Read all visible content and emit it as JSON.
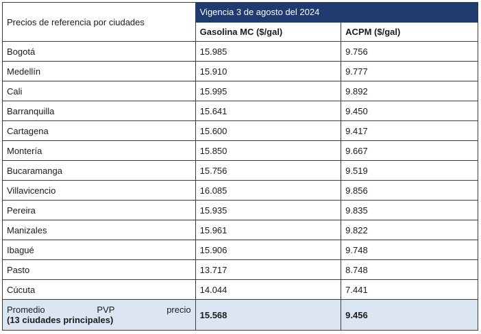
{
  "header": {
    "label": "Precios de referencia por ciudades",
    "vigencia": "Vigencia 3 de agosto del 2024",
    "gasolina_col": "Gasolina MC ($/gal)",
    "acpm_col": "ACPM ($/gal)"
  },
  "rows": [
    {
      "city": "Bogotá",
      "gasolina": "15.985",
      "acpm": "9.756"
    },
    {
      "city": "Medellín",
      "gasolina": "15.910",
      "acpm": "9.777"
    },
    {
      "city": "Cali",
      "gasolina": "15.995",
      "acpm": "9.892"
    },
    {
      "city": "Barranquilla",
      "gasolina": "15.641",
      "acpm": "9.450"
    },
    {
      "city": "Cartagena",
      "gasolina": "15.600",
      "acpm": "9.417"
    },
    {
      "city": "Montería",
      "gasolina": "15.850",
      "acpm": "9.667"
    },
    {
      "city": "Bucaramanga",
      "gasolina": "15.756",
      "acpm": "9.519"
    },
    {
      "city": "Villavicencio",
      "gasolina": "16.085",
      "acpm": "9.856"
    },
    {
      "city": "Pereira",
      "gasolina": "15.935",
      "acpm": "9.835"
    },
    {
      "city": "Manizales",
      "gasolina": "15.961",
      "acpm": "9.822"
    },
    {
      "city": "Ibagué",
      "gasolina": "15.906",
      "acpm": "9.748"
    },
    {
      "city": "Pasto",
      "gasolina": "13.717",
      "acpm": "8.748"
    },
    {
      "city": "Cúcuta",
      "gasolina": "14.044",
      "acpm": "7.441"
    }
  ],
  "average": {
    "word1": "Promedio",
    "word2": "PVP",
    "word3": "precio",
    "line2": "(13 ciudades principales)",
    "gasolina": "15.568",
    "acpm": "9.456"
  },
  "colors": {
    "header_bg": "#1f3a6e",
    "average_bg": "#dce6f2"
  }
}
